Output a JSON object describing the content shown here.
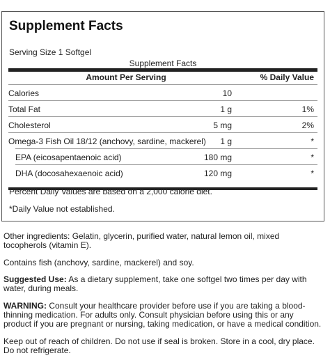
{
  "panel": {
    "title": "Supplement Facts",
    "serving_size": "Serving Size 1 Softgel",
    "caption": "Supplement Facts",
    "header": {
      "amount": "Amount Per Serving",
      "daily_value": "% Daily Value"
    },
    "rows": [
      {
        "name": "Calories",
        "amount": "10",
        "dv": ""
      },
      {
        "name": "Total Fat",
        "amount": "1 g",
        "dv": "1%"
      },
      {
        "name": "Cholesterol",
        "amount": "5 mg",
        "dv": "2%"
      },
      {
        "name": "Omega-3 Fish Oil 18/12 (anchovy, sardine, mackerel)",
        "amount": "1 g",
        "dv": "*"
      },
      {
        "name": "EPA (eicosapentaenoic acid)",
        "amount": "180 mg",
        "dv": "*"
      },
      {
        "name": "DHA (docosahexaenoic acid)",
        "amount": "120 mg",
        "dv": "*"
      }
    ],
    "footnote_dv": "Percent Daily Values are based on a 2,000 calorie diet.",
    "footnote_star": "*Daily Value not established."
  },
  "other_ingredients": "Other ingredients: Gelatin, glycerin, purified water, natural lemon oil, mixed tocopherols (vitamin E).",
  "contains": "Contains fish (anchovy, sardine, mackerel) and soy.",
  "suggested_use": {
    "label": "Suggested Use:",
    "text": " As a dietary supplement, take one softgel two times per day with water, during meals."
  },
  "warning": {
    "label": "WARNING:",
    "text": " Consult your healthcare provider before use if you are taking a blood-thinning medication. For adults only. Consult physician before using this or any product if you are pregnant or nursing, taking medication, or have a medical condition."
  },
  "storage": "Keep out of reach of children. Do not use if seal is broken. Store in a cool, dry place. Do not refrigerate."
}
